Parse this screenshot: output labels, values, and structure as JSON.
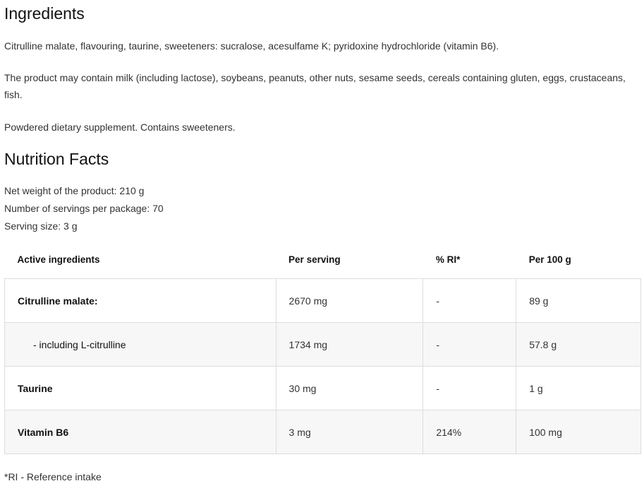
{
  "ingredients": {
    "title": "Ingredients",
    "paragraphs": [
      "Citrulline malate, flavouring, taurine, sweeteners: sucralose, acesulfame K; pyridoxine hydrochloride (vitamin B6).",
      "The product may contain milk (including lactose), soybeans, peanuts, other nuts, sesame seeds, cereals containing gluten, eggs, crustaceans, fish.",
      "Powdered dietary supplement. Contains sweeteners."
    ]
  },
  "nutrition": {
    "title": "Nutrition Facts",
    "info": [
      "Net weight of the product: 210 g",
      "Number of servings per package: 70",
      "Serving size: 3 g"
    ],
    "headers": [
      "Active ingredients",
      "Per serving",
      "% RI*",
      "Per 100 g"
    ],
    "rows": [
      [
        "Citrulline malate:",
        "2670 mg",
        "-",
        "89 g"
      ],
      [
        "- including L-citrulline",
        "1734 mg",
        "-",
        "57.8 g"
      ],
      [
        "Taurine",
        "30 mg",
        "-",
        "1 g"
      ],
      [
        "Vitamin B6",
        "3 mg",
        "214%",
        "100 mg"
      ]
    ],
    "footnote": "*RI - Reference intake"
  }
}
